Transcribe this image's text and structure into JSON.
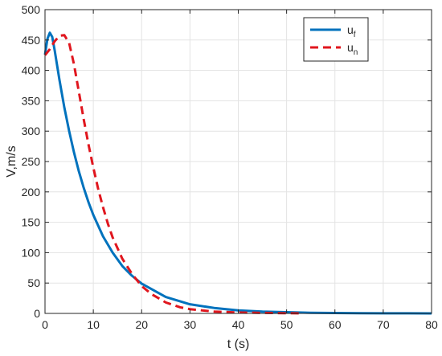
{
  "chart_data": {
    "type": "line",
    "title": "",
    "xlabel": "t (s)",
    "ylabel": "V,m/s",
    "xlim": [
      0,
      80
    ],
    "ylim": [
      0,
      500
    ],
    "xticks": [
      0,
      10,
      20,
      30,
      40,
      50,
      60,
      70,
      80
    ],
    "yticks": [
      0,
      50,
      100,
      150,
      200,
      250,
      300,
      350,
      400,
      450,
      500
    ],
    "grid": true,
    "legend_position": "top-right",
    "series": [
      {
        "name": "u_f",
        "label_base": "u",
        "label_sub": "f",
        "color": "#0072BD",
        "style": "solid",
        "x": [
          0,
          0.5,
          1,
          1.5,
          2,
          3,
          4,
          5,
          6,
          7,
          8,
          9,
          10,
          12,
          14,
          16,
          18,
          20,
          25,
          30,
          35,
          40,
          45,
          50,
          55,
          60,
          65,
          70,
          75,
          80
        ],
        "y": [
          426,
          452,
          462,
          455,
          433,
          384,
          339,
          300,
          265,
          234,
          207,
          183,
          162,
          127,
          100,
          78,
          62,
          49,
          27,
          15,
          9,
          5,
          3,
          2,
          1,
          0.6,
          0.3,
          0.2,
          0.1,
          0
        ]
      },
      {
        "name": "u_n",
        "label_base": "u",
        "label_sub": "n",
        "color": "#E0161E",
        "style": "dashed",
        "x": [
          0,
          1,
          2,
          3,
          4,
          5,
          6,
          7,
          8,
          9,
          10,
          11,
          12,
          13,
          14,
          16,
          18,
          20,
          22,
          25,
          28,
          30,
          35,
          40,
          45,
          50,
          53
        ],
        "y": [
          425,
          435,
          448,
          457,
          458,
          445,
          410,
          365,
          320,
          278,
          240,
          205,
          175,
          148,
          125,
          90,
          65,
          45,
          32,
          18,
          10,
          7,
          3,
          1.5,
          0.8,
          0.4,
          0.2
        ]
      }
    ]
  }
}
